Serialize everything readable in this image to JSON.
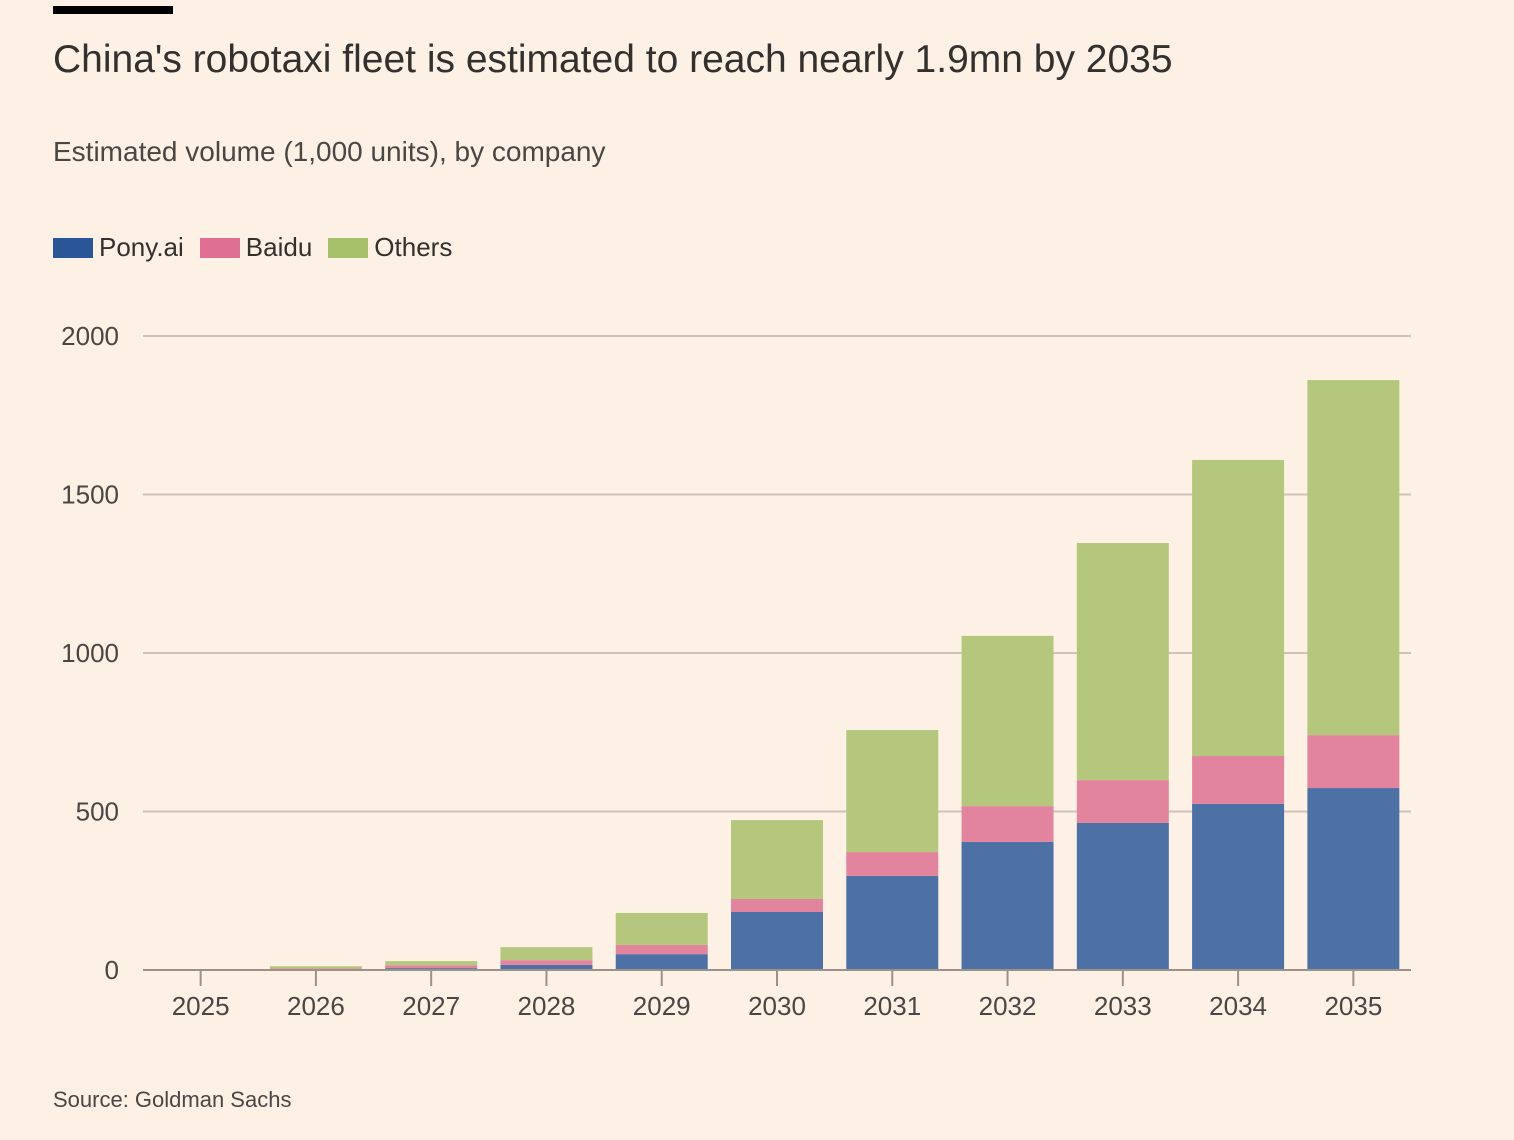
{
  "header": {
    "title": "China's robotaxi fleet is estimated to reach nearly 1.9mn by 2035",
    "subtitle": "Estimated volume (1,000 units), by company"
  },
  "legend": [
    {
      "label": "Pony.ai",
      "color": "#2a5597"
    },
    {
      "label": "Baidu",
      "color": "#df7093"
    },
    {
      "label": "Others",
      "color": "#a6c16a"
    }
  ],
  "source": "Source: Goldman Sachs",
  "colors": {
    "background": "#fdf1e5",
    "pony": "#4e71a5",
    "baidu": "#e3849e",
    "others": "#b5c77d",
    "grid": "#cfc3b8",
    "axis": "#9b918a"
  },
  "chart_data": {
    "type": "bar",
    "stacked": true,
    "title": "China's robotaxi fleet is estimated to reach nearly 1.9mn by 2035",
    "subtitle": "Estimated volume (1,000 units), by company",
    "xlabel": "",
    "ylabel": "",
    "categories": [
      "2025",
      "2026",
      "2027",
      "2028",
      "2029",
      "2030",
      "2031",
      "2032",
      "2033",
      "2034",
      "2035"
    ],
    "series": [
      {
        "name": "Pony.ai",
        "values": [
          0,
          2,
          6,
          16,
          50,
          183,
          297,
          404,
          464,
          524,
          574
        ]
      },
      {
        "name": "Baidu",
        "values": [
          0,
          3,
          9,
          15,
          29,
          41,
          75,
          113,
          135,
          151,
          167
        ]
      },
      {
        "name": "Others",
        "values": [
          1,
          7,
          13,
          41,
          101,
          249,
          385,
          537,
          748,
          934,
          1120
        ]
      }
    ],
    "ylim": [
      0,
      2000
    ],
    "yticks": [
      0,
      500,
      1000,
      1500,
      2000
    ],
    "grid": true,
    "legend_position": "top-left"
  }
}
